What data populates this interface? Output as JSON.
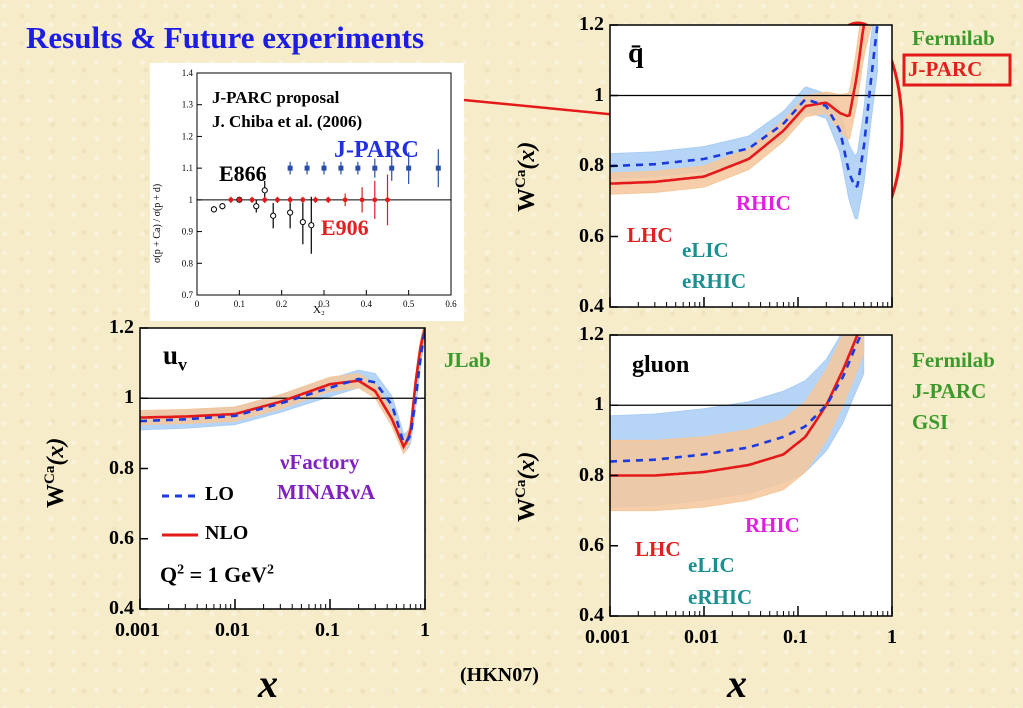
{
  "title": "Results & Future experiments",
  "footer": "(HKN07)",
  "colors": {
    "nlo": "#e41a1a",
    "lo": "#1a3ae0",
    "nlo_band": "#f5c79b",
    "lo_band": "#a9cdf3",
    "title": "#1c1ce6"
  },
  "inset": {
    "text1": "J-PARC proposal",
    "text2": "J. Chiba et al. (2006)",
    "jparc": "J-PARC",
    "e866": "E866",
    "e906": "E906",
    "ylabel": "σ(p + Ca) / σ(p + d)",
    "xlabel": "X₂",
    "yticks": [
      "0.7",
      "0.8",
      "0.9",
      "1",
      "1.1",
      "1.2",
      "1.3",
      "1.4"
    ],
    "xticks": [
      "0",
      "0.1",
      "0.2",
      "0.3",
      "0.4",
      "0.5",
      "0.6"
    ]
  },
  "uv_panel": {
    "label": "u",
    "label_sub": "v",
    "jlab": "JLab",
    "vfactory": "νFactory",
    "minerva": "MINARνA",
    "lo_legend": "LO",
    "nlo_legend": "NLO",
    "q2_a": "Q",
    "q2_b": "2",
    "q2_c": " = 1 GeV",
    "q2_d": "2"
  },
  "qbar_panel": {
    "label": "q̄",
    "fermilab": "Fermilab",
    "jparc": "J-PARC",
    "rhic": "RHIC",
    "lhc": "LHC",
    "elic": "eLIC",
    "erhic": "eRHIC"
  },
  "gluon_panel": {
    "label": "gluon",
    "fermilab": "Fermilab",
    "jparc": "J-PARC",
    "gsi": "GSI",
    "rhic": "RHIC",
    "lhc": "LHC",
    "elic": "eLIC",
    "erhic": "eRHIC"
  },
  "axes": {
    "xlabel": "x",
    "ylabel_w": "W",
    "ylabel_sup": "Ca",
    "ylabel_arg": "(x)",
    "yticks": [
      "0.4",
      "0.6",
      "0.8",
      "1",
      "1.2"
    ],
    "xticks": [
      "0.001",
      "0.01",
      "0.1",
      "1"
    ]
  },
  "chart_data": [
    {
      "type": "line",
      "panel": "u_v",
      "xscale": "log",
      "xlim": [
        0.001,
        1
      ],
      "ylim": [
        0.4,
        1.2
      ],
      "series": [
        {
          "name": "NLO",
          "x": [
            0.001,
            0.003,
            0.01,
            0.03,
            0.1,
            0.2,
            0.3,
            0.45,
            0.6,
            0.7,
            0.8,
            0.9,
            1
          ],
          "y": [
            0.945,
            0.948,
            0.955,
            0.99,
            1.04,
            1.05,
            1.02,
            0.94,
            0.86,
            0.9,
            1.05,
            1.15,
            1.2
          ]
        },
        {
          "name": "LO",
          "x": [
            0.001,
            0.003,
            0.01,
            0.03,
            0.1,
            0.2,
            0.3,
            0.45,
            0.6,
            0.7,
            0.8,
            0.9,
            1
          ],
          "y": [
            0.935,
            0.94,
            0.95,
            0.985,
            1.03,
            1.055,
            1.045,
            0.98,
            0.87,
            0.89,
            1.0,
            1.12,
            1.2
          ]
        }
      ],
      "lo_band_width": 0.025,
      "nlo_band_width": 0.02
    },
    {
      "type": "line",
      "panel": "qbar",
      "xscale": "log",
      "xlim": [
        0.001,
        1
      ],
      "ylim": [
        0.4,
        1.2
      ],
      "series": [
        {
          "name": "NLO",
          "x": [
            0.001,
            0.003,
            0.01,
            0.03,
            0.07,
            0.12,
            0.2,
            0.28,
            0.35,
            0.42,
            0.5,
            0.6
          ],
          "y": [
            0.75,
            0.755,
            0.77,
            0.82,
            0.9,
            0.97,
            0.98,
            0.95,
            0.94,
            1.05,
            1.2,
            1.3
          ]
        },
        {
          "name": "LO",
          "x": [
            0.001,
            0.003,
            0.01,
            0.03,
            0.07,
            0.12,
            0.2,
            0.28,
            0.35,
            0.42,
            0.5,
            0.6,
            0.7
          ],
          "y": [
            0.8,
            0.805,
            0.82,
            0.85,
            0.92,
            0.99,
            0.97,
            0.9,
            0.78,
            0.73,
            0.85,
            1.05,
            1.2
          ]
        }
      ],
      "lo_band_width": 0.035,
      "nlo_band_width": 0.03
    },
    {
      "type": "line",
      "panel": "gluon",
      "xscale": "log",
      "xlim": [
        0.001,
        1
      ],
      "ylim": [
        0.4,
        1.2
      ],
      "series": [
        {
          "name": "NLO",
          "x": [
            0.001,
            0.003,
            0.01,
            0.03,
            0.07,
            0.12,
            0.2,
            0.3,
            0.4,
            0.5
          ],
          "y": [
            0.8,
            0.8,
            0.81,
            0.83,
            0.86,
            0.91,
            1.0,
            1.1,
            1.18,
            1.25
          ]
        },
        {
          "name": "LO",
          "x": [
            0.001,
            0.003,
            0.01,
            0.03,
            0.07,
            0.12,
            0.2,
            0.3,
            0.4,
            0.5
          ],
          "y": [
            0.84,
            0.845,
            0.86,
            0.88,
            0.91,
            0.94,
            1.0,
            1.08,
            1.16,
            1.22
          ]
        }
      ],
      "lo_band_width": 0.13,
      "nlo_band_width": 0.1
    },
    {
      "type": "scatter",
      "panel": "inset",
      "xlim": [
        0,
        0.6
      ],
      "ylim": [
        0.7,
        1.4
      ],
      "series": [
        {
          "name": "E866",
          "x": [
            0.04,
            0.06,
            0.1,
            0.14,
            0.16,
            0.18,
            0.22,
            0.25,
            0.27
          ],
          "y": [
            0.97,
            0.98,
            1.0,
            0.98,
            1.03,
            0.95,
            0.96,
            0.93,
            0.92
          ],
          "err": [
            0.01,
            0.01,
            0.01,
            0.02,
            0.03,
            0.04,
            0.05,
            0.07,
            0.09
          ]
        },
        {
          "name": "E906",
          "x": [
            0.08,
            0.1,
            0.13,
            0.16,
            0.19,
            0.22,
            0.25,
            0.28,
            0.31,
            0.35,
            0.39,
            0.42,
            0.45
          ],
          "y": [
            1.0,
            1.0,
            1.0,
            1.0,
            1.0,
            1.0,
            1.0,
            1.0,
            1.0,
            1.0,
            1.0,
            1.0,
            1.0
          ],
          "err": [
            0.01,
            0.01,
            0.01,
            0.01,
            0.01,
            0.01,
            0.01,
            0.01,
            0.01,
            0.02,
            0.04,
            0.06,
            0.08
          ]
        },
        {
          "name": "J-PARC",
          "x": [
            0.22,
            0.26,
            0.3,
            0.34,
            0.38,
            0.42,
            0.46,
            0.5,
            0.57
          ],
          "y": [
            1.1,
            1.1,
            1.1,
            1.1,
            1.1,
            1.1,
            1.1,
            1.1,
            1.1
          ],
          "err": [
            0.02,
            0.02,
            0.02,
            0.02,
            0.02,
            0.03,
            0.04,
            0.05,
            0.06
          ]
        }
      ]
    }
  ]
}
